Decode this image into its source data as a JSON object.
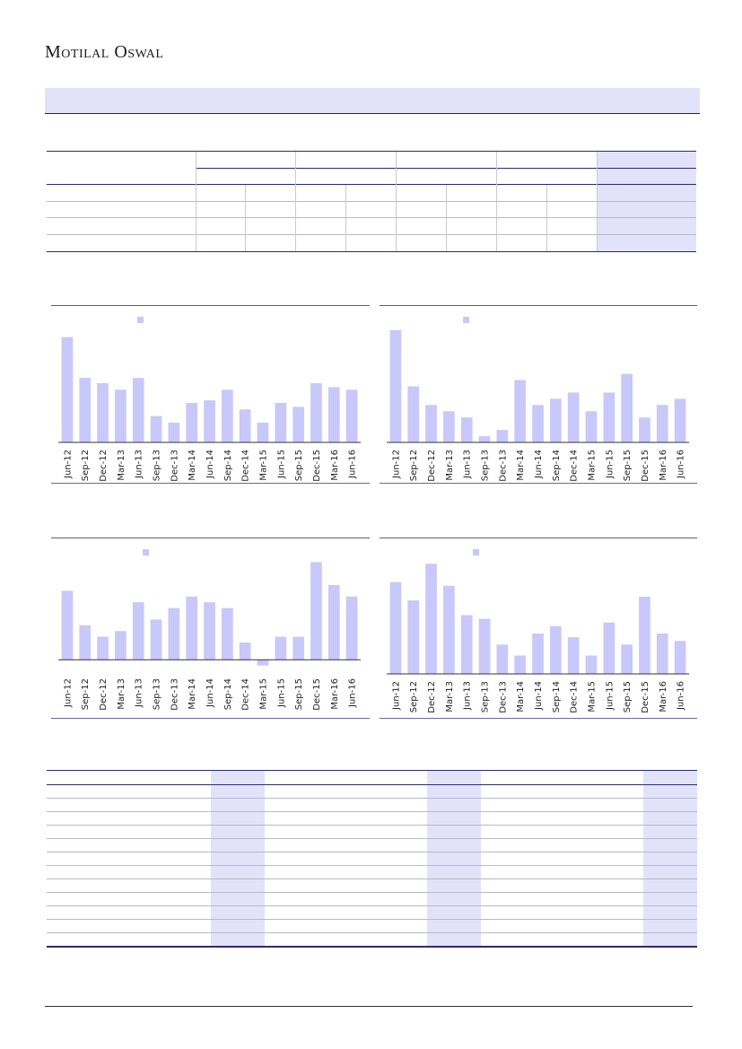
{
  "header": {
    "logo_first_cap": "M",
    "logo_first_rest": "otilal",
    "logo_second_cap": "O",
    "logo_second_rest": "swal"
  },
  "colors": {
    "bar": "#c8c8fb",
    "shade": "#e2e2fb",
    "rule": "#2a2a70"
  },
  "chart_data": [
    {
      "type": "bar",
      "categories": [
        "Jun-12",
        "Sep-12",
        "Dec-12",
        "Mar-13",
        "Jun-13",
        "Sep-13",
        "Dec-13",
        "Mar-14",
        "Jun-14",
        "Sep-14",
        "Dec-14",
        "Mar-15",
        "Jun-15",
        "Sep-15",
        "Dec-15",
        "Mar-16",
        "Jun-16"
      ],
      "values": [
        16,
        9.8,
        9,
        8,
        9.8,
        4,
        3,
        6,
        6.4,
        8,
        5,
        3,
        6,
        5.4,
        9,
        8.4,
        8
      ],
      "ylim": [
        0,
        18
      ],
      "legend": "top-left"
    },
    {
      "type": "bar",
      "categories": [
        "Jun-12",
        "Sep-12",
        "Dec-12",
        "Mar-13",
        "Jun-13",
        "Sep-13",
        "Dec-13",
        "Mar-14",
        "Jun-14",
        "Sep-14",
        "Dec-14",
        "Mar-15",
        "Jun-15",
        "Sep-15",
        "Dec-15",
        "Mar-16",
        "Jun-16"
      ],
      "values": [
        18,
        9,
        6,
        5,
        4,
        1,
        2,
        10,
        6,
        7,
        8,
        5,
        8,
        11,
        4,
        6,
        7
      ],
      "ylim": [
        0,
        19
      ],
      "legend": "top-left"
    },
    {
      "type": "bar",
      "categories": [
        "Jun-12",
        "Sep-12",
        "Dec-12",
        "Mar-13",
        "Jun-13",
        "Sep-13",
        "Dec-13",
        "Mar-14",
        "Jun-14",
        "Sep-14",
        "Dec-14",
        "Mar-15",
        "Jun-15",
        "Sep-15",
        "Dec-15",
        "Mar-16",
        "Jun-16"
      ],
      "values": [
        12,
        6,
        4,
        5,
        10,
        7,
        9,
        11,
        10,
        9,
        3,
        -1,
        4,
        4,
        17,
        13,
        11
      ],
      "ylim": [
        -2,
        18
      ],
      "legend": "top-left"
    },
    {
      "type": "bar",
      "categories": [
        "Jun-12",
        "Sep-12",
        "Dec-12",
        "Mar-13",
        "Jun-13",
        "Sep-13",
        "Dec-13",
        "Mar-14",
        "Jun-14",
        "Sep-14",
        "Dec-14",
        "Mar-15",
        "Jun-15",
        "Sep-15",
        "Dec-15",
        "Mar-16",
        "Jun-16"
      ],
      "values": [
        12.5,
        10,
        15,
        12,
        8,
        7.5,
        4,
        2.5,
        5.5,
        6.5,
        5,
        2.5,
        7,
        4,
        10.5,
        5.5,
        4.5
      ],
      "ylim": [
        0,
        16
      ],
      "legend": "top-left"
    }
  ]
}
